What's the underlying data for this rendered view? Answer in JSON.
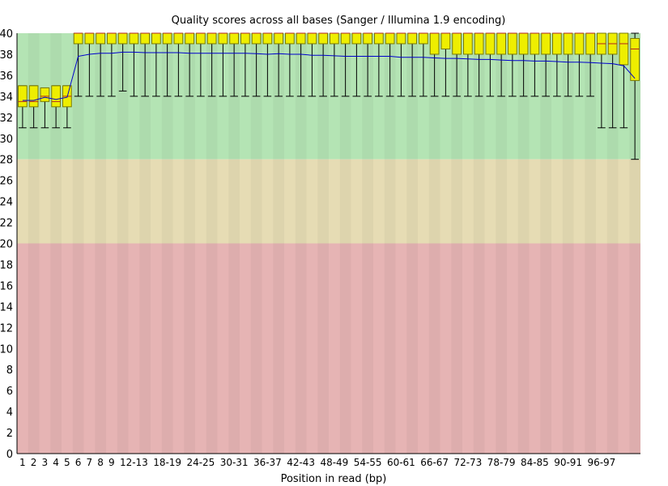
{
  "chart_data": {
    "type": "boxplot",
    "title": "Quality scores across all bases (Sanger / Illumina 1.9 encoding)",
    "xlabel": "Position in read (bp)",
    "ylabel": "",
    "ylim": [
      0,
      40
    ],
    "y_ticks": [
      0,
      2,
      4,
      6,
      8,
      10,
      12,
      14,
      16,
      18,
      20,
      22,
      24,
      26,
      28,
      30,
      32,
      34,
      36,
      38,
      40
    ],
    "quality_zones": [
      {
        "from": 28,
        "to": 40,
        "color": "#b4e4b4"
      },
      {
        "from": 20,
        "to": 28,
        "color": "#e6dcb4"
      },
      {
        "from": 0,
        "to": 20,
        "color": "#e6b4b4"
      }
    ],
    "colors": {
      "box": "#eeee00",
      "box_stroke": "#7a7a00",
      "mean_line": "#0000cc",
      "whisker": "#000000"
    },
    "categories": [
      "1",
      "2",
      "3",
      "4",
      "5",
      "6",
      "7",
      "8",
      "9",
      "10-11",
      "12-13",
      "14-15",
      "16-17",
      "18-19",
      "20-21",
      "22-23",
      "24-25",
      "26-27",
      "28-29",
      "30-31",
      "32-33",
      "34-35",
      "36-37",
      "38-39",
      "40-41",
      "42-43",
      "44-45",
      "46-47",
      "48-49",
      "50-51",
      "52-53",
      "54-55",
      "56-57",
      "58-59",
      "60-61",
      "62-63",
      "64-65",
      "66-67",
      "68-69",
      "70-71",
      "72-73",
      "74-75",
      "76-77",
      "78-79",
      "80-81",
      "82-83",
      "84-85",
      "86-87",
      "88-89",
      "90-91",
      "92-93",
      "94-95",
      "96-97",
      "98-99",
      "100-101",
      "102"
    ],
    "x_tick_labels": [
      "1",
      "2",
      "3",
      "4",
      "5",
      "6",
      "7",
      "8",
      "9",
      "12-13",
      "18-19",
      "24-25",
      "30-31",
      "36-37",
      "42-43",
      "48-49",
      "54-55",
      "60-61",
      "66-67",
      "72-73",
      "78-79",
      "84-85",
      "90-91",
      "96-97"
    ],
    "series": [
      {
        "values": {
          "lower_whisker": [
            31,
            31,
            31,
            31,
            31,
            34,
            34,
            34,
            34,
            34.5,
            34,
            34,
            34,
            34,
            34,
            34,
            34,
            34,
            34,
            34,
            34,
            34,
            34,
            34,
            34,
            34,
            34,
            34,
            34,
            34,
            34,
            34,
            34,
            34,
            34,
            34,
            34,
            34,
            34,
            34,
            34,
            34,
            34,
            34,
            34,
            34,
            34,
            34,
            34,
            34,
            34,
            34,
            31,
            31,
            31,
            28
          ],
          "q1": [
            33,
            33,
            33.5,
            33,
            33,
            39,
            39,
            39,
            39,
            39,
            39,
            39,
            39,
            39,
            39,
            39,
            39,
            39,
            39,
            39,
            39,
            39,
            39,
            39,
            39,
            39,
            39,
            39,
            39,
            39,
            39,
            39,
            39,
            39,
            39,
            39,
            39,
            38,
            38.5,
            38,
            38,
            38,
            38,
            38,
            38,
            38,
            38,
            38,
            38,
            38,
            38,
            38,
            38,
            38,
            37,
            35.5
          ],
          "median": [
            33.5,
            33.5,
            34,
            33.5,
            34,
            40,
            40,
            40,
            40,
            40,
            40,
            40,
            40,
            40,
            40,
            40,
            40,
            40,
            40,
            40,
            40,
            40,
            40,
            40,
            40,
            40,
            40,
            40,
            40,
            40,
            40,
            40,
            40,
            40,
            40,
            40,
            40,
            40,
            40,
            40,
            40,
            40,
            40,
            40,
            40,
            40,
            40,
            40,
            40,
            40,
            40,
            40,
            39,
            39,
            39,
            38.5
          ],
          "q3": [
            35,
            35,
            34.8,
            35,
            35,
            40,
            40,
            40,
            40,
            40,
            40,
            40,
            40,
            40,
            40,
            40,
            40,
            40,
            40,
            40,
            40,
            40,
            40,
            40,
            40,
            40,
            40,
            40,
            40,
            40,
            40,
            40,
            40,
            40,
            40,
            40,
            40,
            40,
            40,
            40,
            40,
            40,
            40,
            40,
            40,
            40,
            40,
            40,
            40,
            40,
            40,
            40,
            40,
            40,
            40,
            39.5
          ],
          "upper_whisker": [
            35,
            35,
            34.8,
            35,
            35,
            40,
            40,
            40,
            40,
            40,
            40,
            40,
            40,
            40,
            40,
            40,
            40,
            40,
            40,
            40,
            40,
            40,
            40,
            40,
            40,
            40,
            40,
            40,
            40,
            40,
            40,
            40,
            40,
            40,
            40,
            40,
            40,
            40,
            40,
            40,
            40,
            40,
            40,
            40,
            40,
            40,
            40,
            40,
            40,
            40,
            40,
            40,
            40,
            40,
            40,
            40
          ],
          "mean": [
            33.6,
            33.6,
            33.9,
            33.7,
            33.9,
            37.8,
            38.0,
            38.1,
            38.1,
            38.2,
            38.2,
            38.15,
            38.15,
            38.15,
            38.15,
            38.1,
            38.1,
            38.1,
            38.1,
            38.1,
            38.1,
            38.05,
            38.0,
            38.05,
            38.0,
            38.0,
            37.9,
            37.9,
            37.85,
            37.8,
            37.8,
            37.8,
            37.8,
            37.8,
            37.7,
            37.7,
            37.7,
            37.65,
            37.6,
            37.6,
            37.55,
            37.5,
            37.5,
            37.45,
            37.4,
            37.4,
            37.35,
            37.35,
            37.3,
            37.25,
            37.25,
            37.2,
            37.15,
            37.1,
            36.9,
            35.7
          ]
        }
      }
    ]
  }
}
